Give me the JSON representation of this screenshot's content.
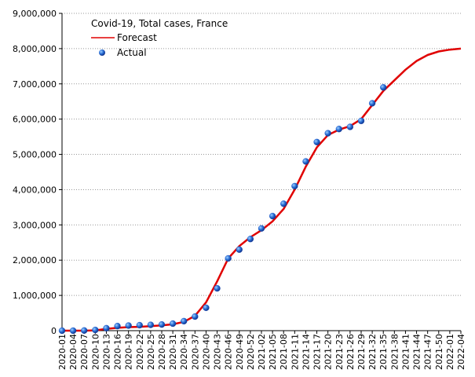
{
  "chart_data": {
    "type": "line",
    "title": "Covid-19, Total cases, France",
    "categories": [
      "2020-01",
      "2020-04",
      "2020-07",
      "2020-10",
      "2020-13",
      "2020-16",
      "2020-19",
      "2020-22",
      "2020-25",
      "2020-28",
      "2020-31",
      "2020-34",
      "2020-37",
      "2020-40",
      "2020-43",
      "2020-46",
      "2020-49",
      "2020-52",
      "2021-02",
      "2021-05",
      "2021-08",
      "2021-11",
      "2021-14",
      "2021-17",
      "2021-20",
      "2021-23",
      "2021-26",
      "2021-29",
      "2021-32",
      "2021-35",
      "2021-38",
      "2021-41",
      "2021-44",
      "2021-47",
      "2021-50",
      "2022-01",
      "2022-04"
    ],
    "series": [
      {
        "name": "Forecast",
        "color": "#e00000",
        "style": "line",
        "values": [
          0,
          0,
          0,
          10000,
          50000,
          80000,
          100000,
          110000,
          130000,
          150000,
          180000,
          250000,
          420000,
          800000,
          1400000,
          2050000,
          2400000,
          2650000,
          2850000,
          3100000,
          3450000,
          4000000,
          4650000,
          5200000,
          5550000,
          5700000,
          5800000,
          6000000,
          6400000,
          6800000,
          7100000,
          7400000,
          7650000,
          7820000,
          7920000,
          7970000,
          8000000
        ]
      },
      {
        "name": "Actual",
        "color": "#1f4fbf",
        "style": "points",
        "values": [
          0,
          0,
          5000,
          20000,
          70000,
          130000,
          145000,
          155000,
          165000,
          175000,
          200000,
          270000,
          400000,
          650000,
          1200000,
          2050000,
          2300000,
          2600000,
          2900000,
          3250000,
          3600000,
          4100000,
          4800000,
          5350000,
          5600000,
          5720000,
          5780000,
          5950000,
          6450000,
          6900000,
          null,
          null,
          null,
          null,
          null,
          null,
          null
        ]
      }
    ],
    "ylim": [
      0,
      9000000
    ],
    "yticks": [
      {
        "value": 0,
        "label": "0"
      },
      {
        "value": 1000000,
        "label": "1,000,000"
      },
      {
        "value": 2000000,
        "label": "2,000,000"
      },
      {
        "value": 3000000,
        "label": "3,000,000"
      },
      {
        "value": 4000000,
        "label": "4,000,000"
      },
      {
        "value": 5000000,
        "label": "5,000,000"
      },
      {
        "value": 6000000,
        "label": "6,000,000"
      },
      {
        "value": 7000000,
        "label": "7,000,000"
      },
      {
        "value": 8000000,
        "label": "8,000,000"
      },
      {
        "value": 9000000,
        "label": "9,000,000"
      }
    ],
    "grid": true
  }
}
